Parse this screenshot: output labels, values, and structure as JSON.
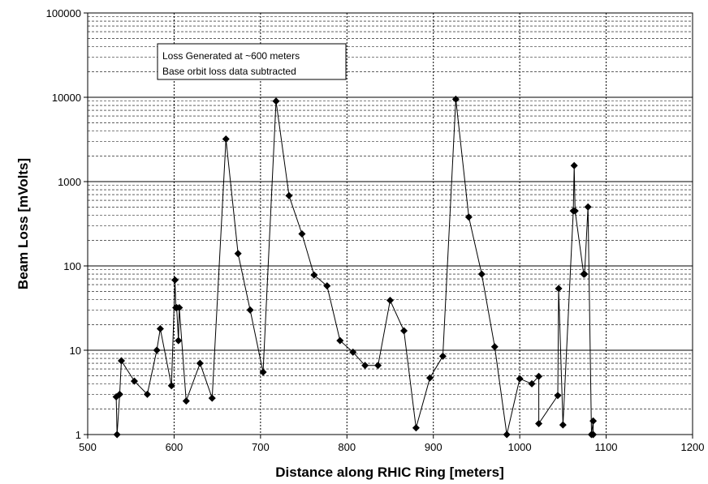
{
  "chart_data": {
    "type": "line",
    "title": "",
    "xlabel": "Distance along RHIC Ring [meters]",
    "ylabel": "Beam Loss [mVolts]",
    "xlim": [
      500,
      1200
    ],
    "ylim": [
      1,
      100000
    ],
    "yscale": "log",
    "grid": true,
    "xticks": [
      "500",
      "600",
      "700",
      "800",
      "900",
      "1000",
      "1100",
      "1200"
    ],
    "yticks": [
      "1",
      "10",
      "100",
      "1000",
      "10000",
      "100000"
    ],
    "annotation": [
      "Loss Generated at ~600 meters",
      "Base orbit loss data subtracted"
    ],
    "line_color": "#000000",
    "marker": "diamond",
    "series": [
      {
        "x": [
          533,
          534,
          537,
          539,
          554,
          569,
          580,
          584,
          597,
          601,
          602,
          603,
          605,
          606,
          614,
          630,
          644,
          660,
          674,
          688,
          703,
          718,
          733,
          748,
          762,
          777,
          792,
          807,
          821,
          836,
          850,
          866,
          880,
          896,
          911,
          926,
          941,
          956,
          971,
          985,
          1000,
          1014,
          1022,
          1022,
          1044,
          1045,
          1050,
          1062,
          1063,
          1064,
          1074,
          1075,
          1079,
          1083,
          1085,
          1085
        ],
        "y": [
          2.8,
          1,
          3,
          7.5,
          4.3,
          3,
          10,
          18,
          3.8,
          68,
          32,
          32,
          13,
          32,
          2.5,
          7,
          2.7,
          3200,
          140,
          30,
          5.5,
          9000,
          680,
          240,
          78,
          58,
          13,
          9.5,
          6.6,
          6.6,
          39,
          17,
          1.2,
          4.7,
          8.5,
          9500,
          380,
          80,
          11,
          1,
          4.6,
          4,
          4.9,
          1.35,
          2.9,
          54,
          1.3,
          450,
          1550,
          450,
          80,
          80,
          500,
          1,
          1.45,
          1
        ]
      }
    ]
  }
}
